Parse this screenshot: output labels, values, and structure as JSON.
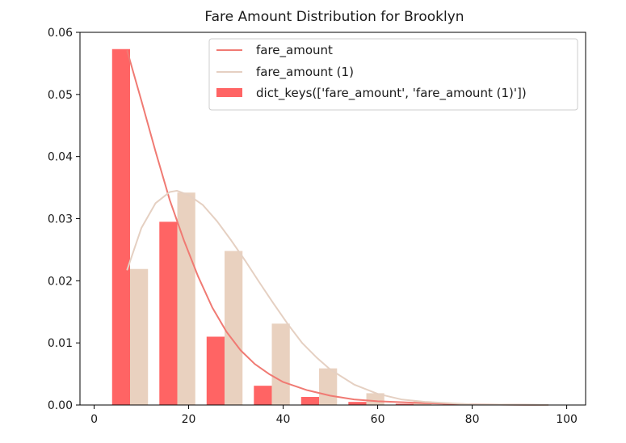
{
  "chart_data": {
    "type": "bar",
    "title": "Fare Amount Distribution for Brooklyn",
    "xlabel": "",
    "ylabel": "",
    "xlim": [
      -3,
      104
    ],
    "ylim": [
      0,
      0.06
    ],
    "xticks": [
      0,
      20,
      40,
      60,
      80,
      100
    ],
    "yticks": [
      0,
      0.01,
      0.02,
      0.03,
      0.04,
      0.05,
      0.06
    ],
    "xtick_labels": [
      "0",
      "20",
      "40",
      "60",
      "80",
      "100"
    ],
    "ytick_labels": [
      "0.00",
      "0.01",
      "0.02",
      "0.03",
      "0.04",
      "0.05",
      "0.06"
    ],
    "grid": false,
    "legend_position": "top-right",
    "bar_width": 3.8,
    "series": [
      {
        "kind": "bar",
        "color": "#ff6464",
        "x": [
          5.7,
          15.7,
          25.7,
          35.7,
          45.7,
          55.7,
          65.7,
          75.7,
          85.7,
          95.7
        ],
        "values": [
          0.0573,
          0.0295,
          0.011,
          0.0031,
          0.0013,
          0.0005,
          0.0002,
          0.0001,
          5e-05,
          2e-05
        ]
      },
      {
        "kind": "bar",
        "color": "#e9d1bf",
        "x": [
          9.5,
          19.5,
          29.5,
          39.5,
          49.5,
          59.5,
          69.5,
          79.5,
          89.5,
          99.5
        ],
        "values": [
          0.0219,
          0.0342,
          0.0248,
          0.0131,
          0.0059,
          0.0019,
          0.0006,
          0.0002,
          0.0001,
          5e-05
        ]
      },
      {
        "kind": "line",
        "name": "fare_amount",
        "color": "#f07a73",
        "x": [
          7,
          10,
          13,
          16,
          19,
          22,
          25,
          28,
          31,
          34,
          37,
          40,
          45,
          50,
          55,
          60,
          70,
          80,
          96
        ],
        "values": [
          0.057,
          0.049,
          0.0408,
          0.033,
          0.0265,
          0.0207,
          0.0157,
          0.0118,
          0.0088,
          0.0066,
          0.005,
          0.0037,
          0.0024,
          0.0015,
          0.0009,
          0.0006,
          0.0003,
          0.0001,
          0.0
        ]
      },
      {
        "kind": "line",
        "name": "fare_amount (1)",
        "color": "#e5d0c2",
        "x": [
          7,
          10,
          13,
          16,
          17.5,
          20,
          23,
          26,
          29,
          32,
          35,
          38,
          41,
          44,
          47,
          50,
          55,
          60,
          65,
          70,
          80,
          96
        ],
        "values": [
          0.0218,
          0.0285,
          0.0325,
          0.0343,
          0.0345,
          0.0338,
          0.0322,
          0.0296,
          0.0265,
          0.0232,
          0.0197,
          0.0163,
          0.013,
          0.01,
          0.0077,
          0.0057,
          0.0033,
          0.0018,
          0.0009,
          0.0005,
          0.0001,
          0.0
        ]
      }
    ],
    "legend": [
      {
        "label": "fare_amount",
        "marker": "line",
        "color": "#f07a73"
      },
      {
        "label": "fare_amount (1)",
        "marker": "line",
        "color": "#e5d0c2"
      },
      {
        "label": "dict_keys(['fare_amount', 'fare_amount (1)'])",
        "marker": "patch",
        "color": "#ff6464"
      }
    ]
  }
}
